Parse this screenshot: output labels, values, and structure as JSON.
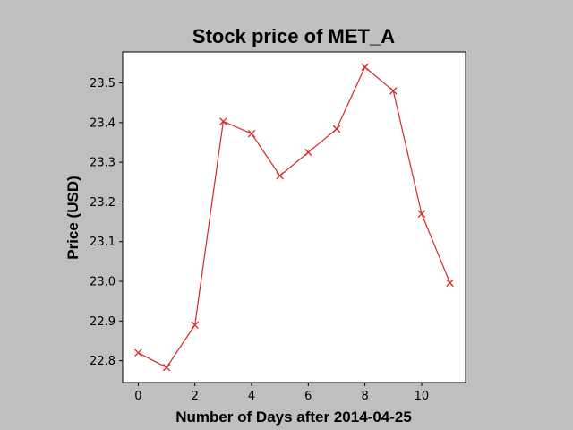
{
  "chart_data": {
    "type": "line",
    "title": "Stock price of MET_A",
    "xlabel": "Number of Days after 2014-04-25",
    "ylabel": "Price (USD)",
    "x": [
      0,
      1,
      2,
      3,
      4,
      5,
      6,
      7,
      8,
      9,
      10,
      11
    ],
    "series": [
      {
        "values": [
          22.82,
          22.783,
          22.89,
          23.403,
          23.372,
          23.266,
          23.325,
          23.384,
          23.54,
          23.48,
          23.17,
          22.996
        ],
        "color": "#d62728",
        "marker": "x"
      }
    ],
    "xlim": [
      -0.55,
      11.55
    ],
    "ylim": [
      22.745,
      23.578
    ],
    "xticks": [
      0,
      2,
      4,
      6,
      8,
      10
    ],
    "xtick_labels": [
      "0",
      "2",
      "4",
      "6",
      "8",
      "10"
    ],
    "yticks": [
      22.8,
      22.9,
      23.0,
      23.1,
      23.2,
      23.3,
      23.4,
      23.5
    ],
    "ytick_labels": [
      "22.8",
      "22.9",
      "23.0",
      "23.1",
      "23.2",
      "23.3",
      "23.4",
      "23.5"
    ],
    "grid": false,
    "legend": "none"
  }
}
